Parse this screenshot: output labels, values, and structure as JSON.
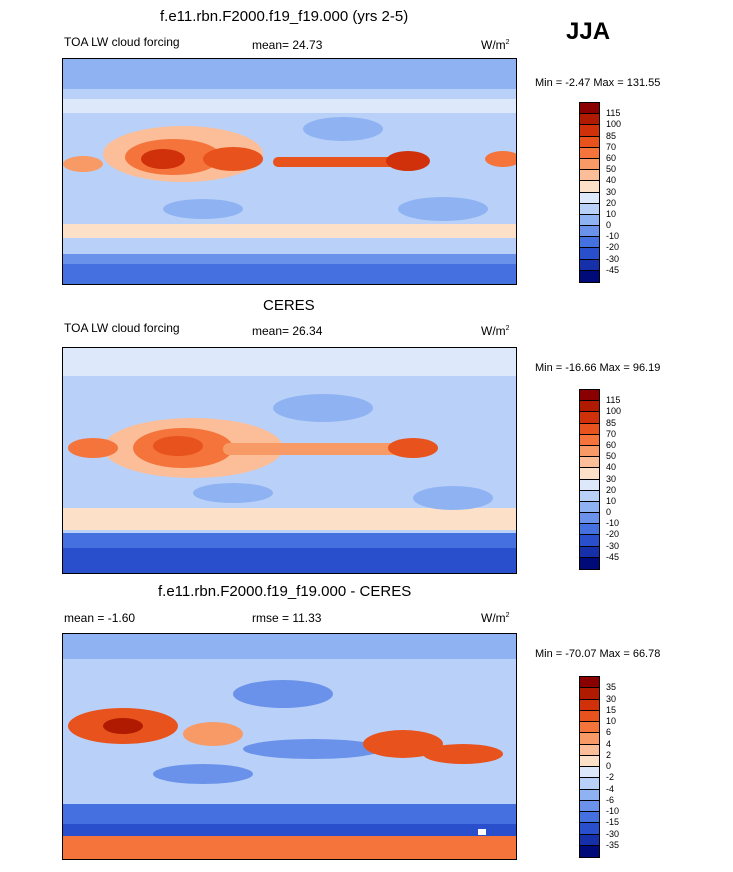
{
  "season": "JJA",
  "panels": [
    {
      "title": "f.e11.rbn.F2000.f19_f19.000 (yrs 2-5)",
      "left_label": "TOA LW cloud forcing",
      "center_label": "mean=  24.73",
      "units": "W/m",
      "units_sup": "2",
      "minmax": "Min =  -2.47 Max = 131.55"
    },
    {
      "title": "CERES",
      "left_label": "TOA LW cloud forcing",
      "center_label": "mean=  26.34",
      "units": "W/m",
      "units_sup": "2",
      "minmax": "Min = -16.66 Max =  96.19"
    },
    {
      "title": "f.e11.rbn.F2000.f19_f19.000 - CERES",
      "left_label": "mean =  -1.60",
      "center_label": "rmse =  11.33",
      "units": "W/m",
      "units_sup": "2",
      "minmax": "Min = -70.07 Max =  66.78"
    }
  ],
  "colorbars": {
    "absolute": {
      "labels": [
        "115",
        "100",
        "85",
        "70",
        "60",
        "50",
        "40",
        "30",
        "20",
        "10",
        "0",
        "-10",
        "-20",
        "-30",
        "-45"
      ],
      "colors": [
        "#8a0000",
        "#b01a00",
        "#d0300a",
        "#e8521c",
        "#f4743c",
        "#f89a66",
        "#fbbe99",
        "#fde0c8",
        "#dde9fb",
        "#b9d1f8",
        "#8fb3f2",
        "#6a92ea",
        "#4470e0",
        "#2a4fcc",
        "#1530a8",
        "#000a78"
      ]
    },
    "difference": {
      "labels": [
        "35",
        "30",
        "15",
        "10",
        "6",
        "4",
        "2",
        "0",
        "-2",
        "-4",
        "-6",
        "-10",
        "-15",
        "-30",
        "-35"
      ],
      "colors": [
        "#8a0000",
        "#b01a00",
        "#d0300a",
        "#e8521c",
        "#f4743c",
        "#f89a66",
        "#fbbe99",
        "#fde0c8",
        "#dde9fb",
        "#b9d1f8",
        "#8fb3f2",
        "#6a92ea",
        "#4470e0",
        "#2a4fcc",
        "#1530a8",
        "#000a78"
      ]
    }
  },
  "chart_data": [
    {
      "type": "heatmap",
      "title": "f.e11.rbn.F2000.f19_f19.000 (yrs 2-5)",
      "variable": "TOA LW cloud forcing",
      "mean": 24.73,
      "min": -2.47,
      "max": 131.55,
      "units": "W/m2",
      "contour_levels": [
        -45,
        -30,
        -20,
        -10,
        0,
        10,
        20,
        30,
        40,
        50,
        60,
        70,
        85,
        100,
        115
      ]
    },
    {
      "type": "heatmap",
      "title": "CERES",
      "variable": "TOA LW cloud forcing",
      "mean": 26.34,
      "min": -16.66,
      "max": 96.19,
      "units": "W/m2",
      "contour_levels": [
        -45,
        -30,
        -20,
        -10,
        0,
        10,
        20,
        30,
        40,
        50,
        60,
        70,
        85,
        100,
        115
      ]
    },
    {
      "type": "heatmap",
      "title": "f.e11.rbn.F2000.f19_f19.000 - CERES",
      "mean": -1.6,
      "rmse": 11.33,
      "min": -70.07,
      "max": 66.78,
      "units": "W/m2",
      "contour_levels": [
        -35,
        -30,
        -15,
        -10,
        -6,
        -4,
        -2,
        0,
        2,
        4,
        6,
        10,
        15,
        30,
        35
      ]
    }
  ]
}
